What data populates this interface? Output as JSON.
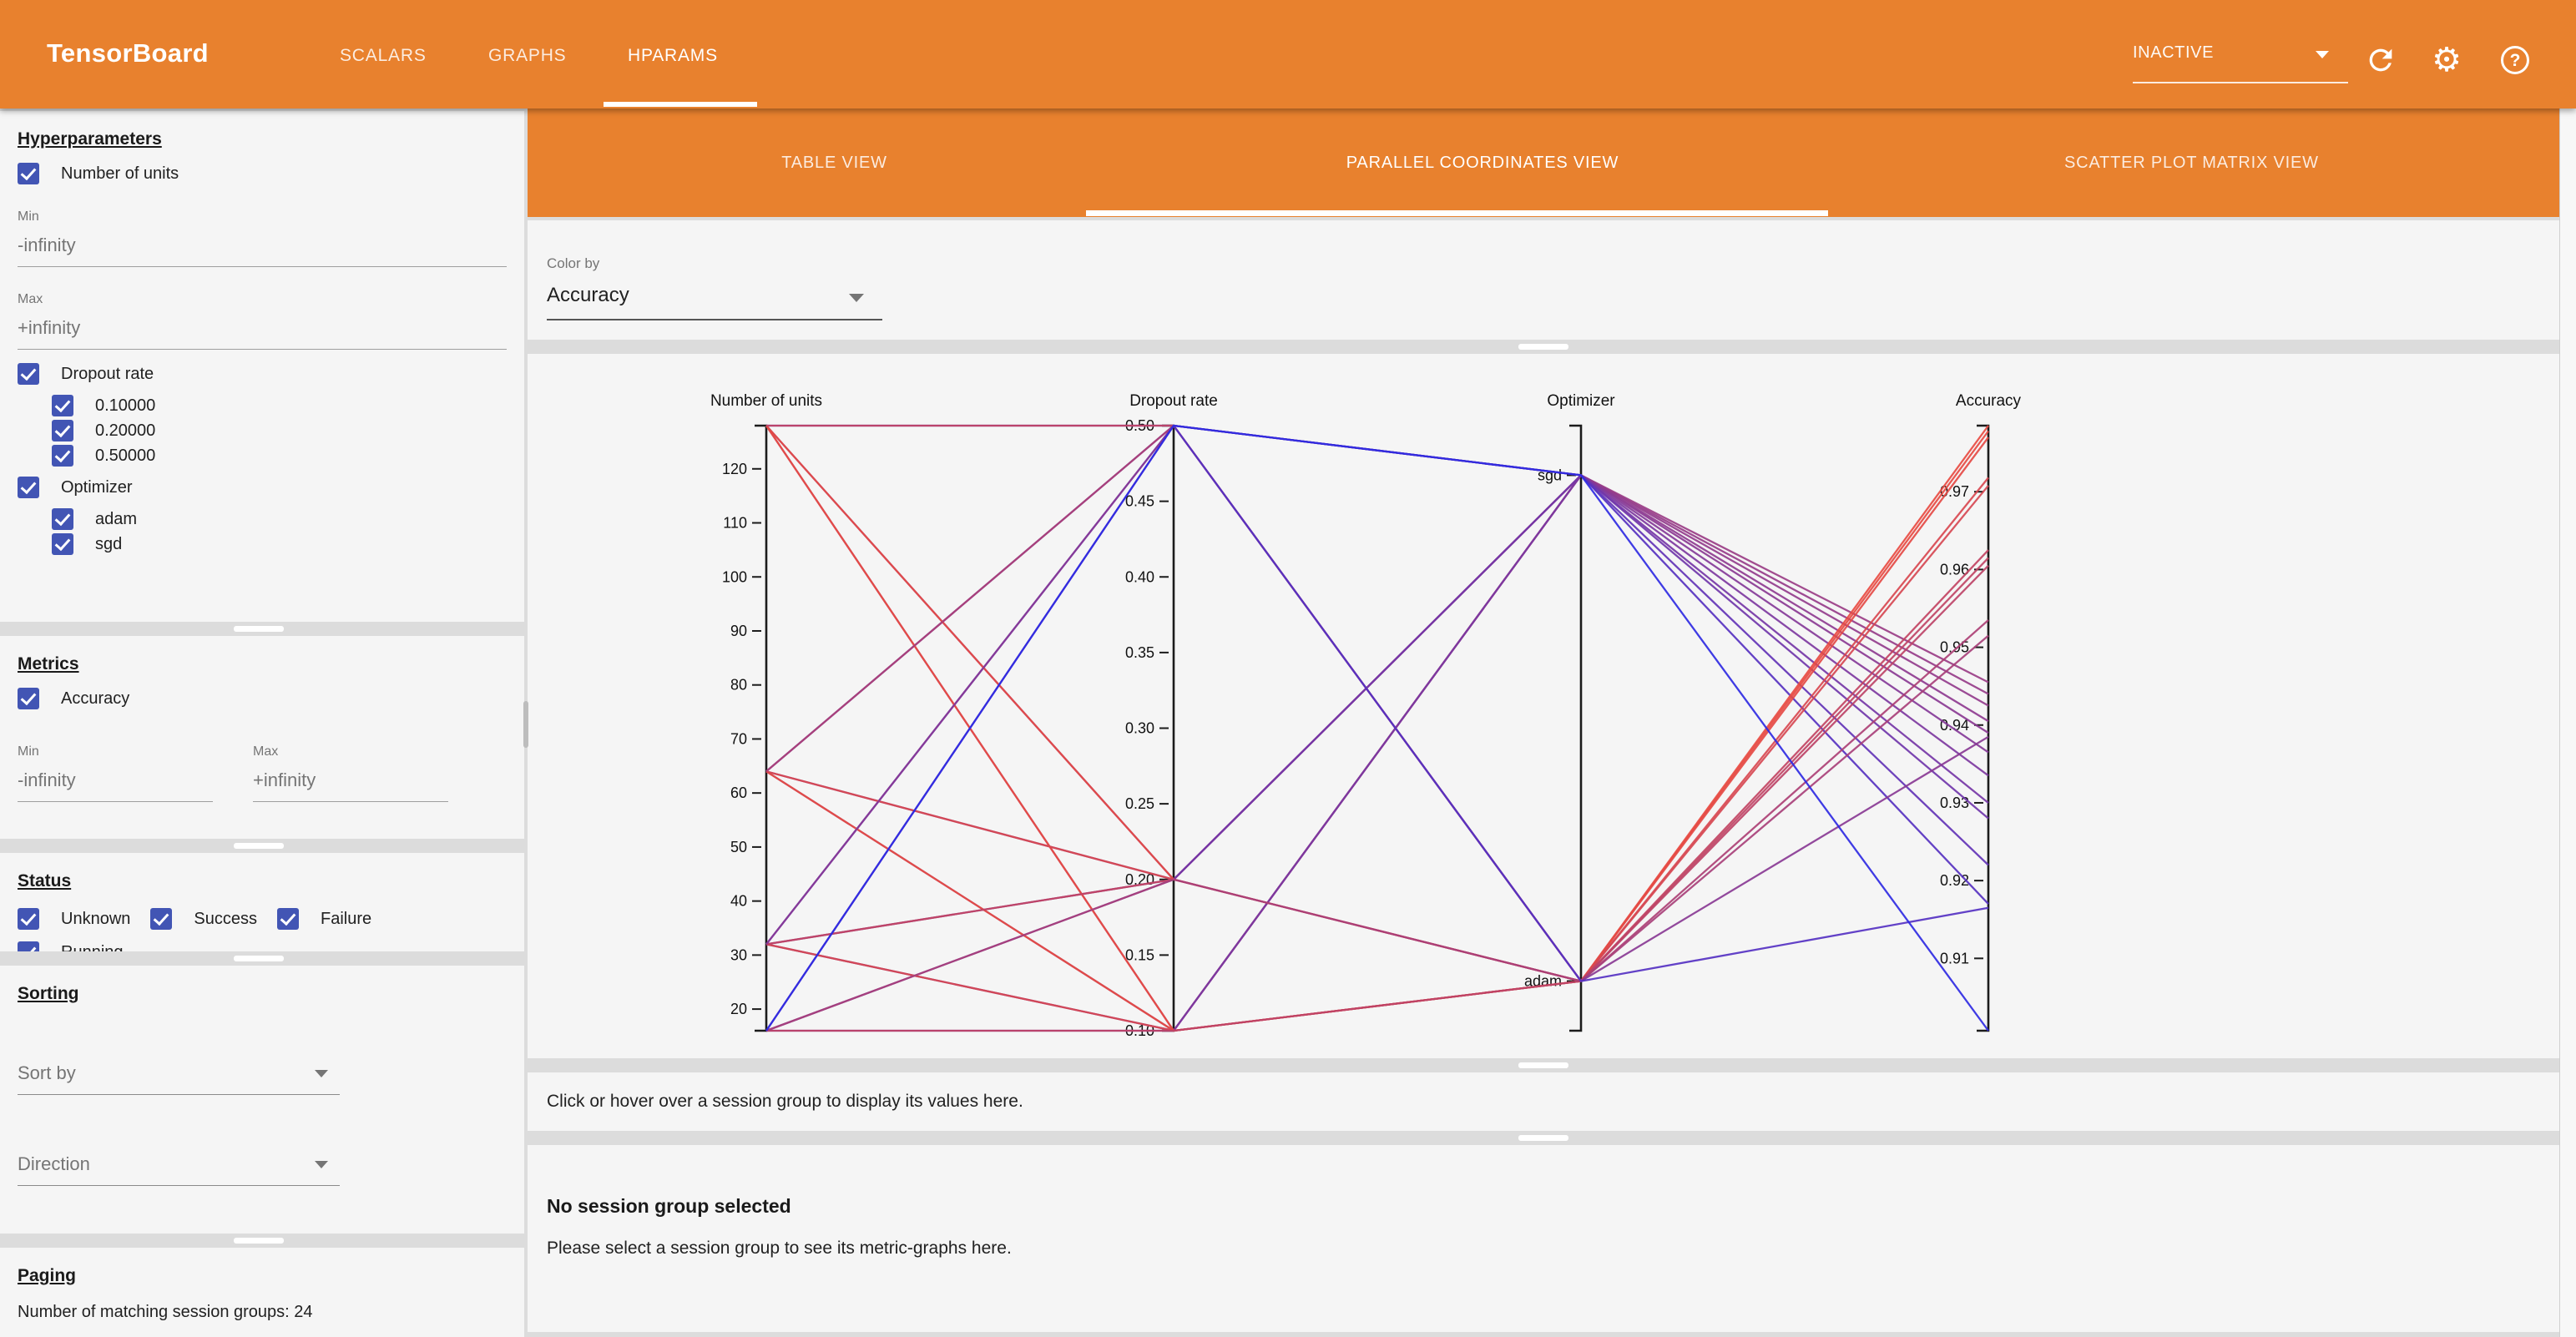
{
  "app_bar": {
    "title": "TensorBoard",
    "nav": [
      {
        "label": "SCALARS",
        "active": false
      },
      {
        "label": "GRAPHS",
        "active": false
      },
      {
        "label": "HPARAMS",
        "active": true
      }
    ],
    "reload_status": {
      "value": "INACTIVE"
    },
    "icons": {
      "help_glyph": "?",
      "gear_glyph": "⚙"
    }
  },
  "sidebar": {
    "hyperparameters": {
      "heading": "Hyperparameters",
      "items": [
        {
          "label": "Number of units",
          "checked": true,
          "fields": [
            {
              "label": "Min",
              "value": "-infinity"
            },
            {
              "label": "Max",
              "value": "+infinity"
            }
          ]
        },
        {
          "label": "Dropout rate",
          "checked": true,
          "children": [
            {
              "label": "0.10000",
              "checked": true
            },
            {
              "label": "0.20000",
              "checked": true
            },
            {
              "label": "0.50000",
              "checked": true
            }
          ]
        },
        {
          "label": "Optimizer",
          "checked": true,
          "children": [
            {
              "label": "adam",
              "checked": true
            },
            {
              "label": "sgd",
              "checked": true
            }
          ]
        }
      ]
    },
    "metrics": {
      "heading": "Metrics",
      "items": [
        {
          "label": "Accuracy",
          "checked": true
        }
      ],
      "fields": [
        {
          "label": "Min",
          "value": "-infinity"
        },
        {
          "label": "Max",
          "value": "+infinity"
        }
      ]
    },
    "status": {
      "heading": "Status",
      "options": [
        {
          "label": "Unknown",
          "checked": true
        },
        {
          "label": "Success",
          "checked": true
        },
        {
          "label": "Failure",
          "checked": true
        },
        {
          "label": "Running",
          "checked": true
        }
      ]
    },
    "sorting": {
      "heading": "Sorting",
      "selects": [
        {
          "placeholder": "Sort by"
        },
        {
          "placeholder": "Direction"
        }
      ]
    },
    "paging": {
      "heading": "Paging",
      "summary": "Number of matching session groups: 24"
    }
  },
  "main": {
    "view_tabs": [
      {
        "label": "TABLE VIEW",
        "active": false
      },
      {
        "label": "PARALLEL COORDINATES VIEW",
        "active": true
      },
      {
        "label": "SCATTER PLOT MATRIX VIEW",
        "active": false
      }
    ],
    "color_by": {
      "label": "Color by",
      "value": "Accuracy"
    },
    "hover_message": "Click or hover over a session group to display its values here.",
    "empty_state": {
      "title": "No session group selected",
      "subtitle": "Please select a session group to see its metric-graphs here."
    }
  },
  "chart_data": {
    "type": "parallel_coordinates",
    "color_by": "Accuracy",
    "color_scale": {
      "low": "#2f2ae2",
      "high": "#e84b42"
    },
    "axes": [
      {
        "key": "units",
        "name": "Number of units",
        "type": "numeric",
        "domain": [
          16,
          128
        ],
        "ticks": [
          {
            "v": 120,
            "label": "120"
          },
          {
            "v": 110,
            "label": "110"
          },
          {
            "v": 100,
            "label": "100"
          },
          {
            "v": 90,
            "label": "90"
          },
          {
            "v": 80,
            "label": "80"
          },
          {
            "v": 70,
            "label": "70"
          },
          {
            "v": 60,
            "label": "60"
          },
          {
            "v": 50,
            "label": "50"
          },
          {
            "v": 40,
            "label": "40"
          },
          {
            "v": 30,
            "label": "30"
          },
          {
            "v": 20,
            "label": "20"
          }
        ]
      },
      {
        "key": "dropout",
        "name": "Dropout rate",
        "type": "numeric",
        "domain": [
          0.1,
          0.5
        ],
        "ticks": [
          {
            "v": 0.5,
            "label": "0.50"
          },
          {
            "v": 0.45,
            "label": "0.45"
          },
          {
            "v": 0.4,
            "label": "0.40"
          },
          {
            "v": 0.35,
            "label": "0.35"
          },
          {
            "v": 0.3,
            "label": "0.30"
          },
          {
            "v": 0.25,
            "label": "0.25"
          },
          {
            "v": 0.2,
            "label": "0.20"
          },
          {
            "v": 0.15,
            "label": "0.15"
          },
          {
            "v": 0.1,
            "label": "0.10"
          }
        ]
      },
      {
        "key": "optimizer",
        "name": "Optimizer",
        "type": "categorical",
        "categories": [
          "sgd",
          "adam"
        ],
        "positions": [
          0.082,
          0.918
        ],
        "ticks": [
          {
            "v": "sgd",
            "label": "sgd"
          },
          {
            "v": "adam",
            "label": "adam"
          }
        ]
      },
      {
        "key": "accuracy",
        "name": "Accuracy",
        "type": "numeric",
        "domain": [
          0.9007,
          0.9785
        ],
        "ticks": [
          {
            "v": 0.97,
            "label": "0.97"
          },
          {
            "v": 0.96,
            "label": "0.96"
          },
          {
            "v": 0.95,
            "label": "0.95"
          },
          {
            "v": 0.94,
            "label": "0.94"
          },
          {
            "v": 0.93,
            "label": "0.93"
          },
          {
            "v": 0.92,
            "label": "0.92"
          },
          {
            "v": 0.91,
            "label": "0.91"
          }
        ]
      }
    ],
    "sessions": [
      {
        "units": 128,
        "dropout": 0.1,
        "optimizer": "sgd",
        "accuracy": 0.9455
      },
      {
        "units": 64,
        "dropout": 0.1,
        "optimizer": "sgd",
        "accuracy": 0.944
      },
      {
        "units": 128,
        "dropout": 0.2,
        "optimizer": "sgd",
        "accuracy": 0.9425
      },
      {
        "units": 64,
        "dropout": 0.2,
        "optimizer": "sgd",
        "accuracy": 0.9405
      },
      {
        "units": 32,
        "dropout": 0.1,
        "optimizer": "sgd",
        "accuracy": 0.939
      },
      {
        "units": 32,
        "dropout": 0.2,
        "optimizer": "sgd",
        "accuracy": 0.9365
      },
      {
        "units": 16,
        "dropout": 0.1,
        "optimizer": "sgd",
        "accuracy": 0.9335
      },
      {
        "units": 16,
        "dropout": 0.2,
        "optimizer": "sgd",
        "accuracy": 0.93
      },
      {
        "units": 128,
        "dropout": 0.5,
        "optimizer": "sgd",
        "accuracy": 0.928
      },
      {
        "units": 64,
        "dropout": 0.5,
        "optimizer": "sgd",
        "accuracy": 0.922
      },
      {
        "units": 32,
        "dropout": 0.5,
        "optimizer": "sgd",
        "accuracy": 0.917
      },
      {
        "units": 128,
        "dropout": 0.1,
        "optimizer": "adam",
        "accuracy": 0.9785
      },
      {
        "units": 64,
        "dropout": 0.1,
        "optimizer": "adam",
        "accuracy": 0.9778
      },
      {
        "units": 128,
        "dropout": 0.2,
        "optimizer": "adam",
        "accuracy": 0.977
      },
      {
        "units": 64,
        "dropout": 0.2,
        "optimizer": "adam",
        "accuracy": 0.9718
      },
      {
        "units": 32,
        "dropout": 0.1,
        "optimizer": "adam",
        "accuracy": 0.9708
      },
      {
        "units": 32,
        "dropout": 0.2,
        "optimizer": "adam",
        "accuracy": 0.9625
      },
      {
        "units": 128,
        "dropout": 0.5,
        "optimizer": "adam",
        "accuracy": 0.9615
      },
      {
        "units": 16,
        "dropout": 0.1,
        "optimizer": "adam",
        "accuracy": 0.9605
      },
      {
        "units": 64,
        "dropout": 0.5,
        "optimizer": "adam",
        "accuracy": 0.9535
      },
      {
        "units": 16,
        "dropout": 0.2,
        "optimizer": "adam",
        "accuracy": 0.9515
      },
      {
        "units": 32,
        "dropout": 0.5,
        "optimizer": "adam",
        "accuracy": 0.9385
      },
      {
        "units": 16,
        "dropout": 0.5,
        "optimizer": "adam",
        "accuracy": 0.9165
      },
      {
        "units": 16,
        "dropout": 0.5,
        "optimizer": "sgd",
        "accuracy": 0.9007
      }
    ]
  }
}
